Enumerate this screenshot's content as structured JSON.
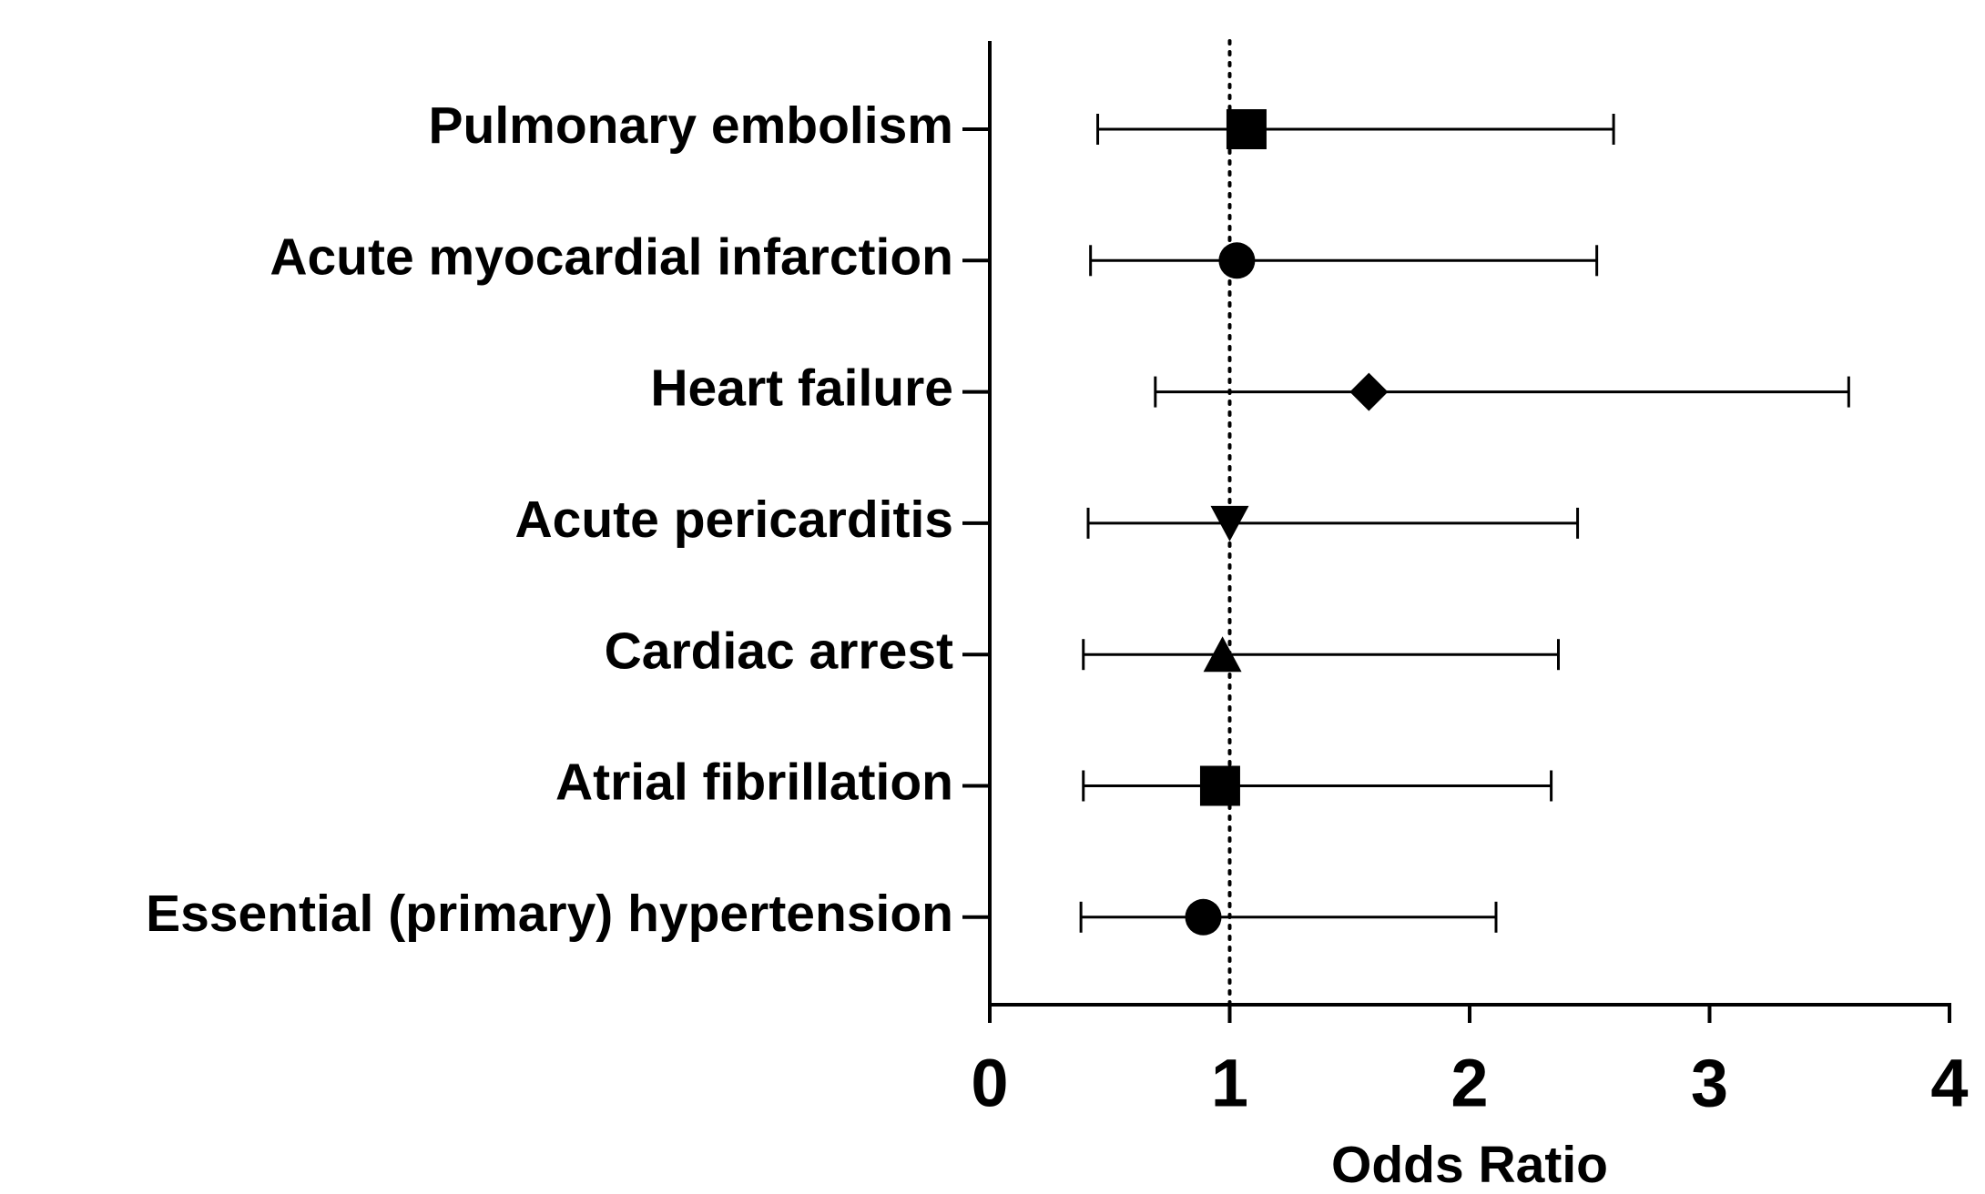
{
  "chart_data": {
    "type": "forest",
    "x_label": "Odds Ratio",
    "categories": [
      "Pulmonary embolism",
      "Acute myocardial infarction",
      "Heart failure",
      "Acute pericarditis",
      "Cardiac arrest",
      "Atrial fibrillation",
      "Essential (primary) hypertension"
    ],
    "values": [
      1.07,
      1.03,
      1.58,
      1.0,
      0.97,
      0.96,
      0.89
    ],
    "lower": [
      0.45,
      0.42,
      0.69,
      0.41,
      0.39,
      0.39,
      0.38
    ],
    "upper": [
      2.6,
      2.53,
      3.58,
      2.45,
      2.37,
      2.34,
      2.11
    ],
    "markers": [
      "square",
      "circle",
      "diamond",
      "triangle-down",
      "triangle-up",
      "square",
      "circle"
    ],
    "color": "#000000",
    "reference_line": 1,
    "xlim": [
      0,
      4
    ],
    "xticks": [
      0,
      1,
      2,
      3,
      4
    ]
  }
}
